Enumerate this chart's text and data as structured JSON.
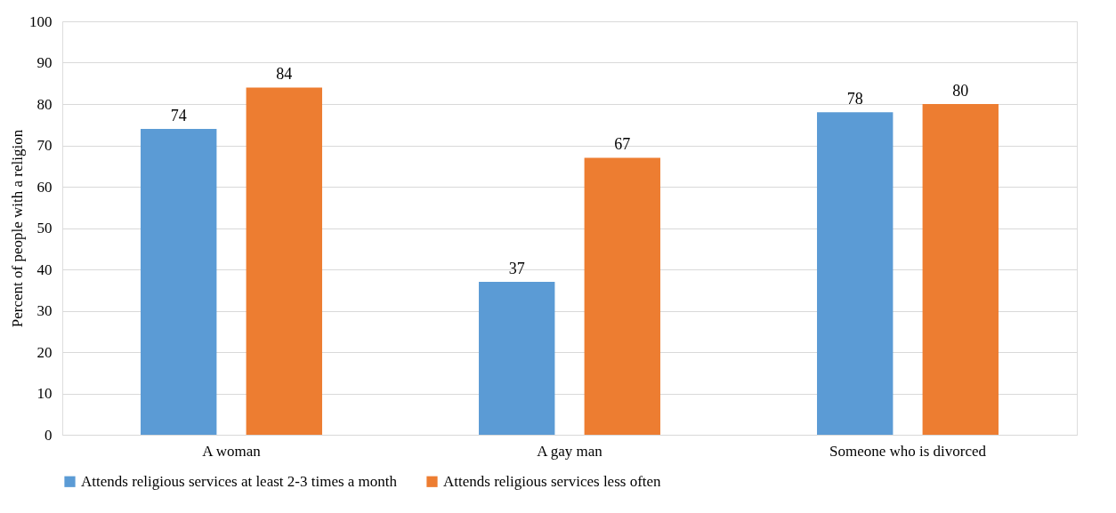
{
  "chart_data": {
    "type": "bar",
    "ylabel": "Percent of people with a religion",
    "categories": [
      "A woman",
      "A gay man",
      "Someone who is divorced"
    ],
    "series": [
      {
        "name": "Attends religious services at least 2-3 times a month",
        "color": "#5b9bd5",
        "values": [
          74,
          37,
          78
        ]
      },
      {
        "name": "Attends religious services less often",
        "color": "#ed7d31",
        "values": [
          84,
          67,
          80
        ]
      }
    ],
    "ylim": [
      0,
      100
    ],
    "yticks": [
      0,
      10,
      20,
      30,
      40,
      50,
      60,
      70,
      80,
      90,
      100
    ],
    "grid": "y",
    "legend": "bottom",
    "data_labels": true
  }
}
